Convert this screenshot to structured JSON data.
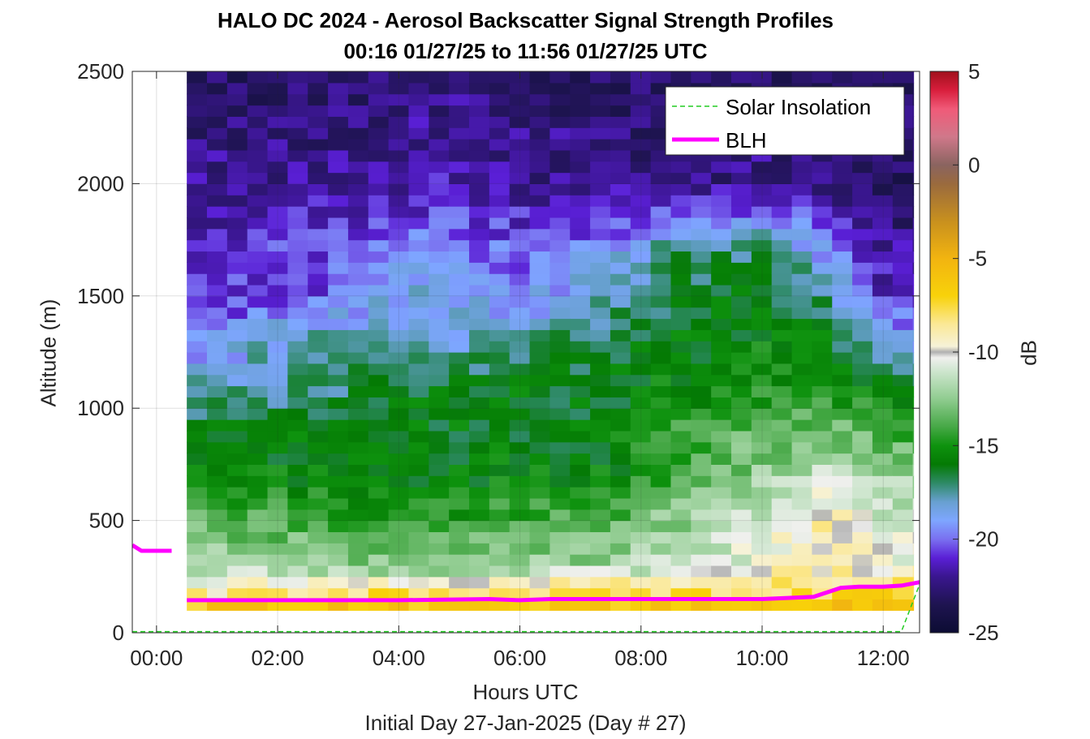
{
  "chart_data": {
    "type": "heatmap",
    "title": "HALO DC 2024 - Aerosol Backscatter Signal Strength Profiles",
    "subtitle": "00:16 01/27/25 to 11:56 01/27/25  UTC",
    "xlabel": "Hours UTC",
    "xlabel_secondary": "Initial Day 27-Jan-2025 (Day # 27)",
    "ylabel": "Altitude (m)",
    "colorbar_label": "dB",
    "xlim": [
      -0.4,
      12.6
    ],
    "ylim": [
      0,
      2500
    ],
    "clim": [
      -25,
      5
    ],
    "x_ticks": [
      0,
      2,
      4,
      6,
      8,
      10,
      12
    ],
    "x_tick_labels": [
      "00:00",
      "02:00",
      "04:00",
      "06:00",
      "08:00",
      "10:00",
      "12:00"
    ],
    "y_ticks": [
      0,
      500,
      1000,
      1500,
      2000,
      2500
    ],
    "y_tick_labels": [
      "0",
      "500",
      "1000",
      "1500",
      "2000",
      "2500"
    ],
    "colorbar_ticks": [
      5,
      0,
      -5,
      -10,
      -15,
      -20,
      -25
    ],
    "colorbar_tick_labels": [
      "5",
      "0",
      "-5",
      "-10",
      "-15",
      "-20",
      "-25"
    ],
    "grid": true,
    "legend_position": "top-right",
    "legend": [
      {
        "name": "Solar Insolation",
        "color": "#22cc22",
        "style": "dashed"
      },
      {
        "name": "BLH",
        "color": "#ff00ff",
        "style": "solid"
      }
    ],
    "heatmap_x_range": [
      0.5,
      12.5
    ],
    "heatmap_y_range": [
      100,
      2500
    ],
    "heatmap_time_step_h": 0.333,
    "heatmap_altitude_step_m": 50,
    "series": [
      {
        "name": "BLH",
        "color": "#ff00ff",
        "x": [
          -0.4,
          -0.25,
          0.25
        ],
        "y": [
          390,
          365,
          365
        ]
      },
      {
        "name": "BLH",
        "color": "#ff00ff",
        "x": [
          0.5,
          2,
          4,
          5.5,
          6,
          6.5,
          8,
          9,
          10,
          10.85,
          11.3,
          11.6,
          12,
          12.3,
          12.6
        ],
        "y": [
          145,
          145,
          145,
          150,
          145,
          150,
          150,
          150,
          150,
          160,
          200,
          205,
          205,
          210,
          225
        ]
      },
      {
        "name": "Solar Insolation",
        "color": "#22cc22",
        "x": [
          -0.4,
          12.3,
          12.6
        ],
        "y": [
          5,
          5,
          215
        ]
      }
    ],
    "profiles": {
      "altitude_m": [
        2500,
        2000,
        1700,
        1500,
        1300,
        1100,
        900,
        700,
        500,
        300,
        200,
        150,
        100
      ],
      "times_h": [
        0.5,
        2.5,
        4.5,
        6.0,
        7.5,
        8.5,
        10.0,
        11.0,
        12.0
      ],
      "values_db": [
        [
          -23,
          -23,
          -22.5,
          -22.5,
          -23,
          -23,
          -23,
          -23,
          -23
        ],
        [
          -22,
          -22,
          -21.5,
          -22,
          -22,
          -22.5,
          -22,
          -22.5,
          -23
        ],
        [
          -21.5,
          -20.5,
          -19.5,
          -20,
          -19.5,
          -17,
          -17,
          -19,
          -22
        ],
        [
          -21,
          -20.5,
          -18,
          -19.5,
          -18,
          -16.5,
          -16,
          -17,
          -21
        ],
        [
          -20,
          -17.5,
          -18.5,
          -17.5,
          -16.5,
          -16,
          -15.5,
          -15.5,
          -19
        ],
        [
          -18,
          -17.5,
          -16,
          -16,
          -16,
          -15.5,
          -15,
          -14.5,
          -16
        ],
        [
          -16,
          -16,
          -16,
          -16,
          -16,
          -14.5,
          -13.5,
          -13,
          -14
        ],
        [
          -15.5,
          -15.5,
          -16,
          -15.5,
          -15.5,
          -14,
          -12.5,
          -11.5,
          -12
        ],
        [
          -13,
          -14,
          -14.5,
          -14,
          -13.5,
          -12.5,
          -11,
          -9,
          -11
        ],
        [
          -12,
          -12.5,
          -13,
          -12.5,
          -12,
          -11.5,
          -10,
          -9.5,
          -10
        ],
        [
          -10,
          -9,
          -8.5,
          -8,
          -8,
          -8.5,
          -8.5,
          -8,
          -8
        ],
        [
          -8,
          -7,
          -7,
          -7,
          -7.5,
          -7.5,
          -7.5,
          -7,
          -7
        ],
        [
          -5,
          -5.5,
          -6,
          -6,
          -6,
          -5,
          -5,
          -5,
          -6
        ]
      ]
    },
    "colormap": [
      {
        "db": -25,
        "color": "#0c0c33"
      },
      {
        "db": -23.5,
        "color": "#1e1450"
      },
      {
        "db": -22,
        "color": "#3a168f"
      },
      {
        "db": -21,
        "color": "#5a1fd6"
      },
      {
        "db": -20,
        "color": "#7a70f0"
      },
      {
        "db": -19,
        "color": "#7ea6ff"
      },
      {
        "db": -18,
        "color": "#68a0d0"
      },
      {
        "db": -17,
        "color": "#2e8a66"
      },
      {
        "db": -16,
        "color": "#047a04"
      },
      {
        "db": -15,
        "color": "#0e920e"
      },
      {
        "db": -14,
        "color": "#46a846"
      },
      {
        "db": -12.5,
        "color": "#90cc90"
      },
      {
        "db": -11,
        "color": "#cfe6cf"
      },
      {
        "db": -10.3,
        "color": "#f0f0ee"
      },
      {
        "db": -10,
        "color": "#b0b0b0"
      },
      {
        "db": -9.7,
        "color": "#f6f2d8"
      },
      {
        "db": -8.5,
        "color": "#fbe896"
      },
      {
        "db": -7,
        "color": "#f8d20a"
      },
      {
        "db": -5,
        "color": "#f2b410"
      },
      {
        "db": -3,
        "color": "#c8901e"
      },
      {
        "db": -1,
        "color": "#9a6a3e"
      },
      {
        "db": 0,
        "color": "#8a6460"
      },
      {
        "db": 1.5,
        "color": "#d0788a"
      },
      {
        "db": 3,
        "color": "#f05a78"
      },
      {
        "db": 4,
        "color": "#d81e3c"
      },
      {
        "db": 5,
        "color": "#a0101c"
      }
    ]
  }
}
